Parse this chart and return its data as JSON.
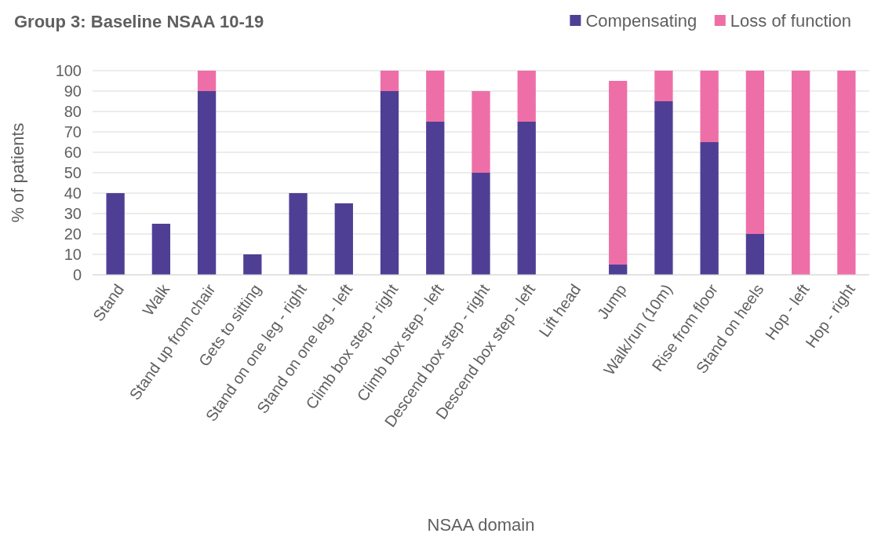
{
  "chart_data": {
    "type": "bar",
    "title": "Group 3: Baseline NSAA 10-19",
    "xlabel": "NSAA domain",
    "ylabel": "% of patients",
    "categories": [
      "Stand",
      "Walk",
      "Stand up from chair",
      "Gets to sitting",
      "Stand on one leg - right",
      "Stand on one leg - left",
      "Climb box step - right",
      "Climb box step - left",
      "Descend box step - right",
      "Descend box step - left",
      "Lift head",
      "Jump",
      "Walk/run (10m)",
      "Rise from floor",
      "Stand on heels",
      "Hop - left",
      "Hop - right"
    ],
    "series": [
      {
        "name": "Compensating",
        "color": "#4f3f94",
        "values": [
          40,
          25,
          90,
          10,
          40,
          35,
          90,
          75,
          50,
          75,
          0,
          5,
          85,
          65,
          20,
          0,
          0
        ]
      },
      {
        "name": "Loss of function",
        "color": "#ee6fa8",
        "values": [
          0,
          0,
          10,
          0,
          0,
          0,
          10,
          25,
          40,
          25,
          0,
          90,
          15,
          35,
          80,
          100,
          100
        ]
      }
    ],
    "stacked": true,
    "ylim": [
      0,
      100
    ],
    "yticks": [
      0,
      10,
      20,
      30,
      40,
      50,
      60,
      70,
      80,
      90,
      100
    ],
    "grid": "y",
    "legend": "top right"
  }
}
